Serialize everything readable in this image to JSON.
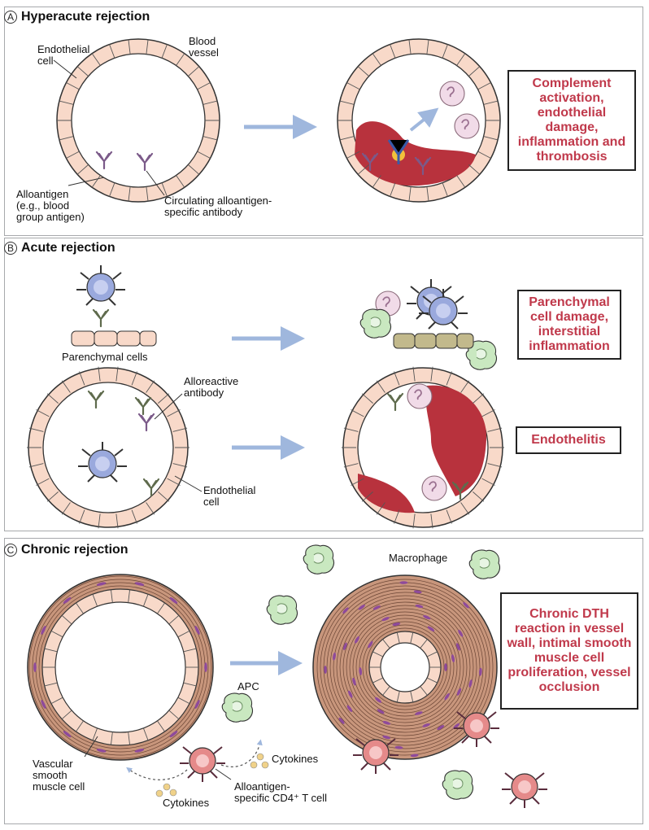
{
  "colors": {
    "text_red": "#c0394b",
    "arrow": "#9fb7dd",
    "endo_fill": "#f8d9c9",
    "nucleus": "#f3a58c",
    "blood": "#b8323d",
    "muscle": "#c8967c",
    "muscle_nuclei": "#8e4a9b",
    "t_cell": "#9aa9dd",
    "macrophage": "#c9e8c0",
    "cd4": "#e79a9a"
  },
  "panelA": {
    "letter": "A",
    "title": "Hyperacute rejection",
    "label_endothelial": "Endothelial\ncell",
    "label_blood_vessel": "Blood\nvessel",
    "label_alloantigen": "Alloantigen\n(e.g., blood\ngroup antigen)",
    "label_antibody": "Circulating alloantigen-\nspecific antibody",
    "outcome": "Complement activation, endothelial damage, inflammation and thrombosis"
  },
  "panelB": {
    "letter": "B",
    "title": "Acute rejection",
    "label_parenchymal": "Parenchymal cells",
    "label_alloreactive": "Alloreactive\nantibody",
    "label_endothelial": "Endothelial\ncell",
    "outcome_1": "Parenchymal cell damage, interstitial inflammation",
    "outcome_2": "Endothelitis"
  },
  "panelC": {
    "letter": "C",
    "title": "Chronic rejection",
    "label_macrophage": "Macrophage",
    "label_apc": "APC",
    "label_cytokines_1": "Cytokines",
    "label_cytokines_2": "Cytokines",
    "label_vsmc": "Vascular\nsmooth\nmuscle cell",
    "label_tcell": "Alloantigen-\nspecific CD4⁺ T cell",
    "outcome": "Chronic DTH reaction in vessel wall, intimal smooth muscle cell proliferation, vessel occlusion"
  },
  "icons": [
    "t-cell-icon",
    "antibody-icon",
    "complement-icon",
    "macrophage-icon",
    "neutrophil-icon",
    "apc-icon"
  ]
}
